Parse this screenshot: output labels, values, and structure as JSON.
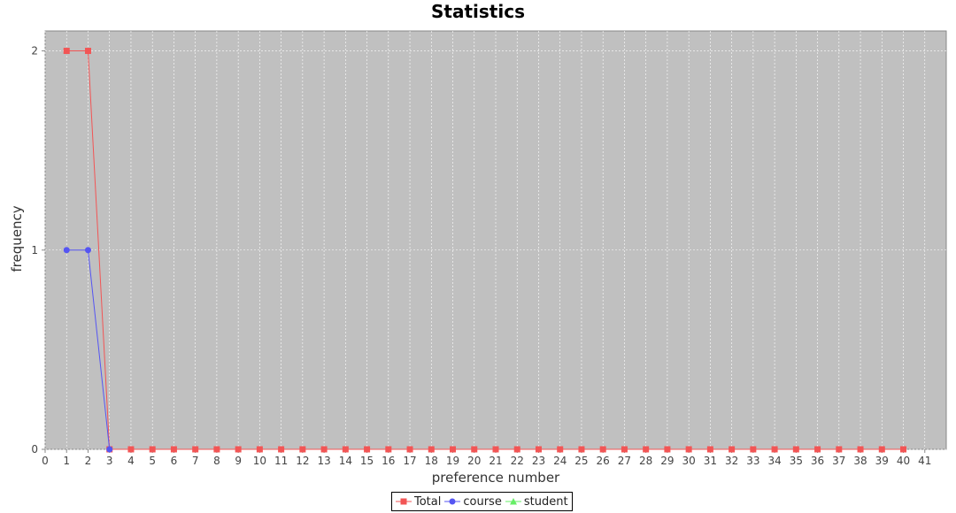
{
  "chart_data": {
    "type": "line",
    "title": "Statistics",
    "xlabel": "preference number",
    "ylabel": "frequency",
    "xlim": [
      0,
      42
    ],
    "ylim": [
      0,
      2.1
    ],
    "x_ticks": [
      0,
      1,
      2,
      3,
      4,
      5,
      6,
      7,
      8,
      9,
      10,
      11,
      12,
      13,
      14,
      15,
      16,
      17,
      18,
      19,
      20,
      21,
      22,
      23,
      24,
      25,
      26,
      27,
      28,
      29,
      30,
      31,
      32,
      33,
      34,
      35,
      36,
      37,
      38,
      39,
      40,
      41
    ],
    "y_ticks": [
      0,
      1,
      2
    ],
    "grid": true,
    "legend_position": "bottom-center",
    "series": [
      {
        "name": "Total",
        "color": "#f25555",
        "marker": "square",
        "x": [
          1,
          2,
          3,
          4,
          5,
          6,
          7,
          8,
          9,
          10,
          11,
          12,
          13,
          14,
          15,
          16,
          17,
          18,
          19,
          20,
          21,
          22,
          23,
          24,
          25,
          26,
          27,
          28,
          29,
          30,
          31,
          32,
          33,
          34,
          35,
          36,
          37,
          38,
          39,
          40
        ],
        "values": [
          2,
          2,
          0,
          0,
          0,
          0,
          0,
          0,
          0,
          0,
          0,
          0,
          0,
          0,
          0,
          0,
          0,
          0,
          0,
          0,
          0,
          0,
          0,
          0,
          0,
          0,
          0,
          0,
          0,
          0,
          0,
          0,
          0,
          0,
          0,
          0,
          0,
          0,
          0,
          0
        ]
      },
      {
        "name": "course",
        "color": "#5555f2",
        "marker": "circle",
        "x": [
          1,
          2,
          3
        ],
        "values": [
          1,
          1,
          0
        ]
      },
      {
        "name": "student",
        "color": "#66ee66",
        "marker": "triangle",
        "x": [],
        "values": []
      }
    ]
  },
  "colors": {
    "plot_background": "#c0c0c0",
    "gridline": "#ffffff",
    "axis": "#888888"
  }
}
